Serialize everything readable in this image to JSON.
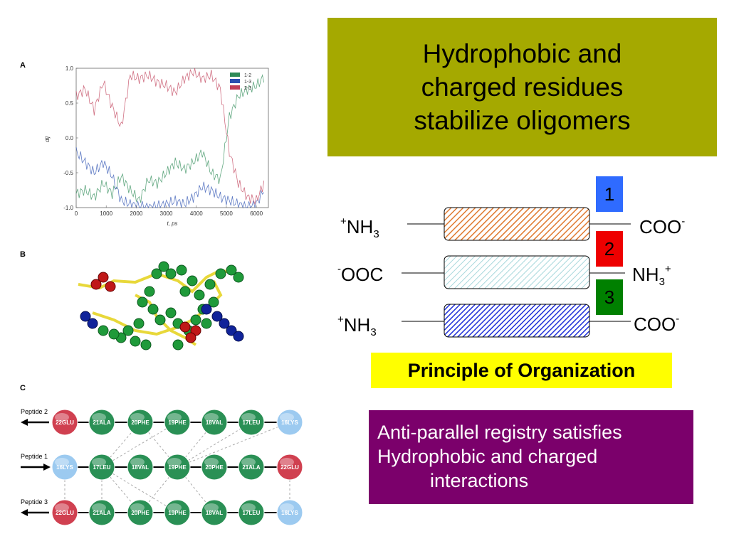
{
  "title": {
    "lines": [
      "Hydrophobic and",
      "charged residues",
      "stabilize oligomers"
    ]
  },
  "panels": {
    "a": "A",
    "b": "B",
    "c": "C"
  },
  "chart_data": {
    "type": "line",
    "ylabel": "dij",
    "xlabel": "t, ps",
    "xlim": [
      0,
      6400
    ],
    "ylim": [
      -1.0,
      1.0
    ],
    "x_ticks": [
      "0",
      "1000",
      "2000",
      "3000",
      "4000",
      "5000",
      "6000"
    ],
    "y_ticks": [
      "1.0",
      "0.5",
      "0.0",
      "-0.5",
      "-1.0"
    ],
    "legend_position": "top-right",
    "series": [
      {
        "name": "1-2",
        "color": "#2e8b57",
        "x": [
          0,
          300,
          600,
          900,
          1200,
          1500,
          1800,
          2100,
          2400,
          2700,
          3000,
          3300,
          3600,
          3900,
          4200,
          4500,
          4800,
          5100,
          5400,
          5700,
          6000,
          6300
        ],
        "y": [
          -0.8,
          -0.75,
          -0.85,
          -0.65,
          -0.8,
          -0.55,
          -0.75,
          -0.9,
          -0.6,
          -0.65,
          -0.5,
          -0.35,
          -0.45,
          -0.35,
          -0.2,
          -0.5,
          -0.6,
          0.3,
          0.6,
          0.7,
          0.75,
          0.9
        ]
      },
      {
        "name": "1-3",
        "color": "#2a4fb0",
        "x": [
          0,
          300,
          600,
          900,
          1200,
          1500,
          1800,
          2100,
          2400,
          2700,
          3000,
          3300,
          3600,
          3900,
          4200,
          4500,
          4800,
          5100,
          5400,
          5700,
          6000,
          6300
        ],
        "y": [
          -0.2,
          -0.35,
          -0.5,
          -0.35,
          -0.55,
          -0.9,
          -0.95,
          -0.98,
          -1.0,
          -0.98,
          -0.95,
          -0.9,
          -0.95,
          -0.85,
          -0.7,
          -0.75,
          -0.85,
          -0.9,
          -0.95,
          -1.0,
          -0.95,
          -0.7
        ]
      },
      {
        "name": "2-3",
        "color": "#c0405a",
        "x": [
          0,
          300,
          600,
          900,
          1200,
          1500,
          1800,
          2100,
          2400,
          2700,
          3000,
          3300,
          3600,
          3900,
          4200,
          4500,
          4800,
          5100,
          5400,
          5700,
          6000,
          6300
        ],
        "y": [
          0.6,
          0.7,
          0.4,
          0.8,
          0.45,
          0.15,
          0.9,
          0.85,
          0.9,
          0.8,
          0.75,
          0.65,
          0.85,
          0.95,
          0.85,
          0.9,
          0.7,
          -0.2,
          -0.65,
          -0.85,
          -0.9,
          -0.6
        ]
      }
    ]
  },
  "diagram": {
    "left_labels": [
      {
        "pre": "+",
        "main": "NH",
        "sub": "3",
        "post": ""
      },
      {
        "pre": "-",
        "main": "OOC",
        "sub": "",
        "post": ""
      },
      {
        "pre": "+",
        "main": "NH",
        "sub": "3",
        "post": ""
      }
    ],
    "right_labels": [
      {
        "main": "COO",
        "sub": "",
        "sup": "-"
      },
      {
        "main": "NH",
        "sub": "3",
        "sup": "+"
      },
      {
        "main": "COO",
        "sub": "",
        "sup": "-"
      }
    ],
    "numbers": [
      {
        "label": "1",
        "color": "#2f6bff"
      },
      {
        "label": "2",
        "color": "#ee0000"
      },
      {
        "label": "3",
        "color": "#008000"
      }
    ],
    "strand_colors": [
      "#e07a30",
      "#a8d8dc",
      "#1f2fd8"
    ]
  },
  "principle_label": "Principle of Organization",
  "conclusion": {
    "lines": [
      "Anti-parallel registry satisfies",
      "Hydrophobic and charged",
      "interactions"
    ]
  },
  "peptides": [
    {
      "label": "Peptide 2",
      "dir": "left",
      "residues": [
        "22GLU",
        "21ALA",
        "20PHE",
        "19PHE",
        "18VAL",
        "17LEU",
        "16LYS"
      ]
    },
    {
      "label": "Peptide 1",
      "dir": "right",
      "residues": [
        "16LYS",
        "17LEU",
        "18VAL",
        "19PHE",
        "20PHE",
        "21ALA",
        "22GLU"
      ]
    },
    {
      "label": "Peptide 3",
      "dir": "left",
      "residues": [
        "22GLU",
        "21ALA",
        "20PHE",
        "19PHE",
        "18VAL",
        "17LEU",
        "16LYS"
      ]
    }
  ],
  "residue_colors": {
    "acid": "#d04050",
    "base": "#9ccaf0",
    "hydrophobic": "#2a9055"
  }
}
